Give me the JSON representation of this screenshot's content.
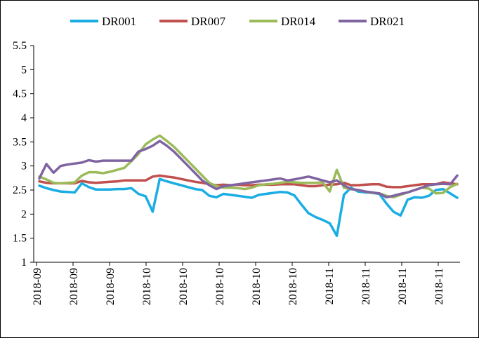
{
  "chart_data": {
    "type": "line",
    "title": "",
    "xlabel": "",
    "ylabel": "",
    "ylim": [
      1,
      5.5
    ],
    "yticks": [
      "1",
      "1.5",
      "2",
      "2.5",
      "3",
      "3.5",
      "4",
      "4.5",
      "5",
      "5.5"
    ],
    "xtick_labels": [
      "2018-09",
      "2018-09",
      "2018-09",
      "2018-10",
      "2018-10",
      "2018-10",
      "2018-10",
      "2018-10",
      "2018-11",
      "2018-11",
      "2018-11",
      "2018-11"
    ],
    "x_count": 60,
    "grid": false,
    "legend_position": "top",
    "series": [
      {
        "name": "DR001",
        "color": "#1AADE4",
        "values": [
          2.59,
          2.54,
          2.5,
          2.47,
          2.46,
          2.45,
          2.64,
          2.56,
          2.51,
          2.51,
          2.51,
          2.52,
          2.52,
          2.54,
          2.42,
          2.37,
          2.05,
          2.73,
          2.68,
          2.64,
          2.6,
          2.56,
          2.52,
          2.5,
          2.38,
          2.35,
          2.42,
          2.4,
          2.38,
          2.36,
          2.34,
          2.4,
          2.42,
          2.44,
          2.46,
          2.45,
          2.39,
          2.2,
          2.02,
          1.94,
          1.88,
          1.81,
          1.55,
          2.4,
          2.55,
          2.47,
          2.45,
          2.44,
          2.42,
          2.22,
          2.05,
          1.97,
          2.3,
          2.35,
          2.34,
          2.38,
          2.5,
          2.52,
          2.43,
          2.34
        ]
      },
      {
        "name": "DR007",
        "color": "#C0504D",
        "values": [
          2.68,
          2.65,
          2.64,
          2.64,
          2.64,
          2.64,
          2.69,
          2.66,
          2.65,
          2.66,
          2.67,
          2.68,
          2.7,
          2.7,
          2.7,
          2.7,
          2.78,
          2.8,
          2.78,
          2.76,
          2.73,
          2.7,
          2.67,
          2.65,
          2.62,
          2.6,
          2.61,
          2.6,
          2.61,
          2.6,
          2.6,
          2.61,
          2.61,
          2.61,
          2.62,
          2.62,
          2.62,
          2.6,
          2.58,
          2.58,
          2.6,
          2.61,
          2.62,
          2.65,
          2.6,
          2.6,
          2.61,
          2.62,
          2.62,
          2.57,
          2.56,
          2.56,
          2.58,
          2.6,
          2.62,
          2.62,
          2.62,
          2.66,
          2.64,
          2.62
        ]
      },
      {
        "name": "DR014",
        "color": "#9BBB59",
        "values": [
          2.78,
          2.72,
          2.65,
          2.64,
          2.65,
          2.66,
          2.8,
          2.87,
          2.87,
          2.85,
          2.88,
          2.92,
          2.96,
          3.1,
          3.25,
          3.45,
          3.55,
          3.63,
          3.52,
          3.4,
          3.25,
          3.1,
          2.95,
          2.8,
          2.65,
          2.58,
          2.55,
          2.55,
          2.54,
          2.52,
          2.55,
          2.6,
          2.62,
          2.63,
          2.65,
          2.67,
          2.66,
          2.65,
          2.65,
          2.65,
          2.66,
          2.47,
          2.92,
          2.55,
          2.52,
          2.5,
          2.47,
          2.44,
          2.43,
          2.38,
          2.35,
          2.4,
          2.45,
          2.5,
          2.55,
          2.53,
          2.43,
          2.44,
          2.56,
          2.63
        ]
      },
      {
        "name": "DR021",
        "color": "#8064A2",
        "values": [
          2.74,
          3.04,
          2.86,
          3.0,
          3.03,
          3.05,
          3.07,
          3.12,
          3.09,
          3.11,
          3.11,
          3.11,
          3.11,
          3.11,
          3.3,
          3.35,
          3.42,
          3.52,
          3.42,
          3.3,
          3.15,
          3.0,
          2.85,
          2.7,
          2.6,
          2.52,
          2.58,
          2.6,
          2.62,
          2.64,
          2.66,
          2.68,
          2.7,
          2.72,
          2.74,
          2.7,
          2.72,
          2.75,
          2.78,
          2.74,
          2.7,
          2.66,
          2.7,
          2.6,
          2.52,
          2.5,
          2.47,
          2.45,
          2.43,
          2.35,
          2.38,
          2.42,
          2.45,
          2.5,
          2.55,
          2.6,
          2.62,
          2.63,
          2.62,
          2.8
        ]
      }
    ]
  }
}
